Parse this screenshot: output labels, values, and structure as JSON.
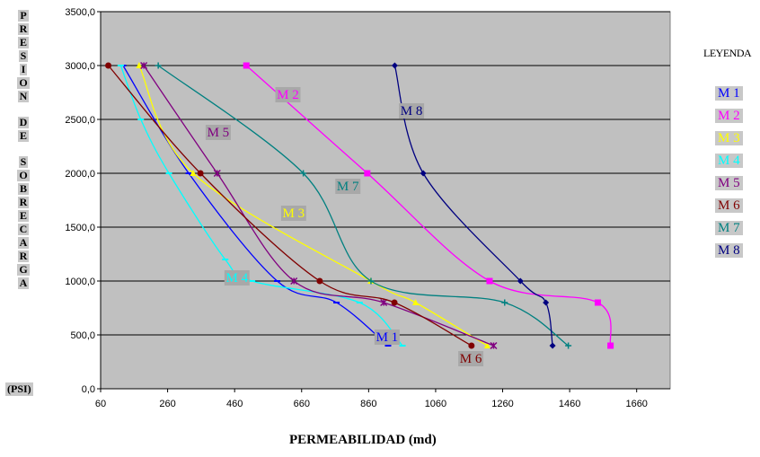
{
  "y_axis_letters_1": [
    "P",
    "R",
    "E",
    "S",
    "I",
    "O",
    "N"
  ],
  "y_axis_letters_2": [
    "D",
    "E"
  ],
  "y_axis_letters_3": [
    "S",
    "O",
    "B",
    "R",
    "E",
    "C",
    "A",
    "R",
    "G",
    "A"
  ],
  "y_unit": "(PSI)",
  "x_title": "PERMEABILIDAD (md)",
  "legend_title": "LEYENDA",
  "colors": {
    "plot_bg": "#c0c0c0",
    "grid": "#000000",
    "M 1": "#0000ff",
    "M 2": "#ff00ff",
    "M 3": "#ffff00",
    "M 4": "#00ffff",
    "M 5": "#800080",
    "M 6": "#800000",
    "M 7": "#008080",
    "M 8": "#000080"
  },
  "chart_data": {
    "type": "line",
    "xlabel": "PERMEABILIDAD (md)",
    "ylabel": "PRESION DE SOBRECARGA (PSI)",
    "xlim": [
      60,
      1760
    ],
    "ylim": [
      0,
      3500
    ],
    "x_ticks": [
      "60",
      "260",
      "460",
      "660",
      "860",
      "1060",
      "1260",
      "1460",
      "1660"
    ],
    "y_ticks": [
      "0,0",
      "500,0",
      "1000,0",
      "1500,0",
      "2000,0",
      "2500,0",
      "3000,0",
      "3500,0"
    ],
    "grid": "horizontal",
    "legend_position": "right",
    "series": [
      {
        "name": "M 1",
        "marker": "dash",
        "points": [
          [
            127,
            3000
          ],
          [
            323,
            2000
          ],
          [
            587,
            1000
          ],
          [
            764,
            800
          ],
          [
            918,
            400
          ]
        ],
        "label_at": [
          915,
          450
        ]
      },
      {
        "name": "M 2",
        "marker": "square",
        "points": [
          [
            495,
            3000
          ],
          [
            856,
            2000
          ],
          [
            1221,
            1000
          ],
          [
            1544,
            800
          ],
          [
            1582,
            400
          ]
        ],
        "label_at": [
          619,
          2700
        ]
      },
      {
        "name": "M 3",
        "marker": "triangle",
        "points": [
          [
            175,
            3000
          ],
          [
            336,
            2000
          ],
          [
            866,
            1000
          ],
          [
            1000,
            800
          ],
          [
            1214,
            400
          ]
        ],
        "label_at": [
          636,
          1600
        ]
      },
      {
        "name": "M 4",
        "marker": "dash",
        "points": [
          [
            120,
            3000
          ],
          [
            180,
            2500
          ],
          [
            264,
            2000
          ],
          [
            432,
            1200
          ],
          [
            512,
            1000
          ],
          [
            833,
            800
          ],
          [
            961,
            400
          ]
        ],
        "label_at": [
          467,
          1000
        ]
      },
      {
        "name": "M 5",
        "marker": "star",
        "points": [
          [
            189,
            3000
          ],
          [
            408,
            2000
          ],
          [
            637,
            1000
          ],
          [
            905,
            800
          ],
          [
            1233,
            400
          ]
        ],
        "label_at": [
          411,
          2350
        ]
      },
      {
        "name": "M 6",
        "marker": "circle",
        "points": [
          [
            83,
            3000
          ],
          [
            358,
            2000
          ],
          [
            714,
            1000
          ],
          [
            937,
            800
          ],
          [
            1167,
            400
          ]
        ],
        "label_at": [
          1165,
          250
        ]
      },
      {
        "name": "M 7",
        "marker": "plus",
        "points": [
          [
            232,
            3000
          ],
          [
            665,
            2000
          ],
          [
            867,
            1000
          ],
          [
            1266,
            800
          ],
          [
            1456,
            400
          ]
        ],
        "label_at": [
          798,
          1850
        ]
      },
      {
        "name": "M 8",
        "marker": "diamond",
        "points": [
          [
            938,
            3000
          ],
          [
            1023,
            2000
          ],
          [
            1313,
            1000
          ],
          [
            1389,
            800
          ],
          [
            1409,
            400
          ]
        ],
        "label_at": [
          988,
          2550
        ]
      }
    ]
  }
}
